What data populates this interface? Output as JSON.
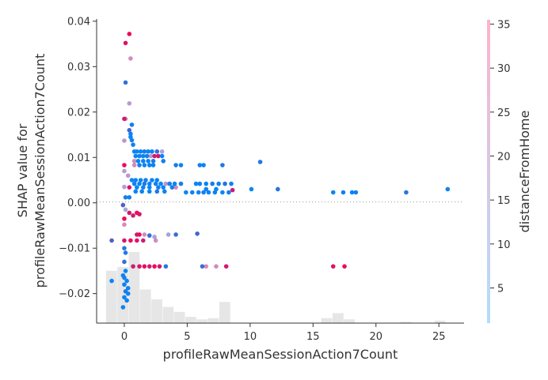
{
  "chart_data": {
    "type": "scatter",
    "title": "",
    "xlabel": "profileRawMeanSessionAction7Count",
    "ylabel_lines": [
      "SHAP value for",
      "profileRawMeanSessionAction7Count"
    ],
    "xlim": [
      -2.2,
      27.0
    ],
    "ylim": [
      -0.0265,
      0.0405
    ],
    "xticks": [
      0,
      5,
      10,
      15,
      20,
      25
    ],
    "xtick_labels": [
      "0",
      "5",
      "10",
      "15",
      "20",
      "25"
    ],
    "yticks": [
      -0.02,
      -0.01,
      0.0,
      0.01,
      0.02,
      0.03,
      0.04
    ],
    "ytick_labels": [
      "−0.02",
      "−0.01",
      "0.00",
      "0.01",
      "0.02",
      "0.03",
      "0.04"
    ],
    "zero_line": true,
    "grid": false,
    "colorbar": {
      "label": "distanceFromHome",
      "range": [
        1,
        35.5
      ],
      "ticks": [
        5,
        10,
        15,
        20,
        25,
        30,
        35
      ],
      "tick_labels": [
        "5",
        "10",
        "15",
        "20",
        "25",
        "30",
        "35"
      ],
      "colors": [
        "#008afb",
        "#ff0052"
      ]
    },
    "histogram": {
      "color": "#e6e6e6",
      "bin_width": 0.9,
      "bins": [
        {
          "x": -1.0,
          "h": 0.42
        },
        {
          "x": -0.1,
          "h": 0.45
        },
        {
          "x": 0.8,
          "h": 0.57
        },
        {
          "x": 1.7,
          "h": 0.27
        },
        {
          "x": 2.6,
          "h": 0.19
        },
        {
          "x": 3.5,
          "h": 0.13
        },
        {
          "x": 4.4,
          "h": 0.09
        },
        {
          "x": 5.3,
          "h": 0.05
        },
        {
          "x": 6.2,
          "h": 0.03
        },
        {
          "x": 7.1,
          "h": 0.04
        },
        {
          "x": 8.0,
          "h": 0.17
        },
        {
          "x": 16.1,
          "h": 0.04
        },
        {
          "x": 17.0,
          "h": 0.08
        },
        {
          "x": 17.9,
          "h": 0.03
        },
        {
          "x": 22.4,
          "h": 0.01
        },
        {
          "x": 25.1,
          "h": 0.02
        }
      ]
    },
    "points": [
      [
        0.4,
        0.0372,
        33
      ],
      [
        0.1,
        0.0352,
        32
      ],
      [
        0.5,
        0.0318,
        24
      ],
      [
        0.1,
        0.0265,
        7
      ],
      [
        0.4,
        0.0219,
        17
      ],
      [
        0.0,
        0.0185,
        30
      ],
      [
        0.1,
        0.0185,
        26
      ],
      [
        0.6,
        0.0172,
        4
      ],
      [
        0.4,
        0.016,
        10
      ],
      [
        0.5,
        0.0152,
        2
      ],
      [
        0.5,
        0.0145,
        3
      ],
      [
        0.6,
        0.0138,
        2
      ],
      [
        0.0,
        0.0137,
        20
      ],
      [
        0.7,
        0.0128,
        4
      ],
      [
        0.8,
        0.0113,
        2
      ],
      [
        1.0,
        0.0113,
        3
      ],
      [
        1.3,
        0.0113,
        2
      ],
      [
        1.6,
        0.0113,
        5
      ],
      [
        1.9,
        0.0113,
        2
      ],
      [
        2.2,
        0.0113,
        3
      ],
      [
        2.6,
        0.0113,
        8
      ],
      [
        3.0,
        0.0113,
        14
      ],
      [
        0.9,
        0.0103,
        3
      ],
      [
        1.2,
        0.0103,
        4
      ],
      [
        1.5,
        0.0103,
        2
      ],
      [
        1.8,
        0.0103,
        3
      ],
      [
        2.1,
        0.0103,
        18
      ],
      [
        2.4,
        0.0103,
        28
      ],
      [
        2.7,
        0.0103,
        30
      ],
      [
        3.0,
        0.0103,
        2
      ],
      [
        0.8,
        0.0092,
        22
      ],
      [
        1.1,
        0.0092,
        2
      ],
      [
        1.5,
        0.0092,
        3
      ],
      [
        1.9,
        0.0092,
        2
      ],
      [
        2.3,
        0.0092,
        5
      ],
      [
        3.1,
        0.0092,
        3
      ],
      [
        0.8,
        0.0083,
        24
      ],
      [
        1.2,
        0.0083,
        3
      ],
      [
        1.6,
        0.0083,
        2
      ],
      [
        2.0,
        0.0083,
        3
      ],
      [
        2.3,
        0.0083,
        2
      ],
      [
        4.1,
        0.0083,
        5
      ],
      [
        4.5,
        0.0083,
        2
      ],
      [
        6.0,
        0.0083,
        3
      ],
      [
        6.3,
        0.0083,
        2
      ],
      [
        7.8,
        0.0083,
        6
      ],
      [
        10.8,
        0.009,
        6
      ],
      [
        0.0,
        0.0083,
        33
      ],
      [
        0.0,
        0.007,
        16
      ],
      [
        0.3,
        0.006,
        20
      ],
      [
        0.6,
        0.005,
        2
      ],
      [
        0.9,
        0.005,
        3
      ],
      [
        1.3,
        0.005,
        2
      ],
      [
        1.7,
        0.005,
        4
      ],
      [
        2.2,
        0.005,
        3
      ],
      [
        2.6,
        0.005,
        2
      ],
      [
        0.8,
        0.0042,
        3
      ],
      [
        1.2,
        0.0042,
        2
      ],
      [
        1.6,
        0.0042,
        5
      ],
      [
        2.0,
        0.0042,
        2
      ],
      [
        2.5,
        0.0042,
        3
      ],
      [
        2.9,
        0.0042,
        2
      ],
      [
        3.3,
        0.0042,
        20
      ],
      [
        3.6,
        0.0042,
        3
      ],
      [
        4.0,
        0.0042,
        2
      ],
      [
        4.5,
        0.0042,
        4
      ],
      [
        5.7,
        0.0042,
        2
      ],
      [
        6.0,
        0.0042,
        3
      ],
      [
        6.5,
        0.0042,
        2
      ],
      [
        7.0,
        0.0042,
        5
      ],
      [
        7.5,
        0.0042,
        3
      ],
      [
        8.0,
        0.0042,
        7
      ],
      [
        8.5,
        0.0042,
        3
      ],
      [
        0.0,
        0.0035,
        15
      ],
      [
        0.4,
        0.0034,
        30
      ],
      [
        1.0,
        0.0034,
        2
      ],
      [
        1.5,
        0.0034,
        3
      ],
      [
        2.0,
        0.0034,
        2
      ],
      [
        2.7,
        0.0034,
        4
      ],
      [
        3.1,
        0.0034,
        2
      ],
      [
        3.8,
        0.0034,
        3
      ],
      [
        4.1,
        0.0034,
        24
      ],
      [
        6.5,
        0.003,
        3
      ],
      [
        7.3,
        0.003,
        2
      ],
      [
        8.6,
        0.0028,
        28
      ],
      [
        10.1,
        0.003,
        2
      ],
      [
        12.2,
        0.003,
        6
      ],
      [
        25.7,
        0.003,
        3
      ],
      [
        0.9,
        0.0025,
        2
      ],
      [
        1.4,
        0.0025,
        3
      ],
      [
        2.0,
        0.0025,
        2
      ],
      [
        2.6,
        0.0025,
        5
      ],
      [
        3.2,
        0.0025,
        2
      ],
      [
        4.9,
        0.0023,
        2
      ],
      [
        5.4,
        0.0023,
        3
      ],
      [
        5.9,
        0.0023,
        2
      ],
      [
        6.3,
        0.0023,
        4
      ],
      [
        6.7,
        0.0023,
        2
      ],
      [
        7.2,
        0.0023,
        3
      ],
      [
        7.8,
        0.0023,
        2
      ],
      [
        8.3,
        0.0023,
        3
      ],
      [
        16.6,
        0.0023,
        2
      ],
      [
        17.4,
        0.0023,
        3
      ],
      [
        18.1,
        0.0023,
        2
      ],
      [
        18.4,
        0.0023,
        3
      ],
      [
        22.4,
        0.0023,
        6
      ],
      [
        0.1,
        0.0012,
        4
      ],
      [
        0.4,
        0.0012,
        3
      ],
      [
        -0.1,
        -0.0005,
        12
      ],
      [
        0.1,
        -0.0015,
        13
      ],
      [
        0.4,
        -0.0022,
        30
      ],
      [
        0.7,
        -0.0028,
        28
      ],
      [
        1.0,
        -0.0022,
        35
      ],
      [
        1.2,
        -0.0025,
        30
      ],
      [
        0.0,
        -0.0035,
        33
      ],
      [
        0.0,
        -0.0048,
        26
      ],
      [
        1.0,
        -0.007,
        28
      ],
      [
        1.2,
        -0.007,
        33
      ],
      [
        1.6,
        -0.007,
        24
      ],
      [
        2.0,
        -0.0072,
        8
      ],
      [
        2.4,
        -0.0075,
        15
      ],
      [
        3.5,
        -0.007,
        14
      ],
      [
        4.1,
        -0.007,
        8
      ],
      [
        5.8,
        -0.0068,
        10
      ],
      [
        -1.0,
        -0.0083,
        12
      ],
      [
        0.0,
        -0.0083,
        30
      ],
      [
        0.5,
        -0.0083,
        33
      ],
      [
        1.0,
        -0.0083,
        31
      ],
      [
        1.5,
        -0.0083,
        28
      ],
      [
        2.5,
        -0.0083,
        22
      ],
      [
        0.0,
        -0.01,
        6
      ],
      [
        0.1,
        -0.011,
        5
      ],
      [
        0.0,
        -0.013,
        8
      ],
      [
        0.7,
        -0.014,
        28
      ],
      [
        1.2,
        -0.014,
        31
      ],
      [
        1.6,
        -0.014,
        33
      ],
      [
        2.0,
        -0.014,
        28
      ],
      [
        2.4,
        -0.014,
        33
      ],
      [
        2.8,
        -0.014,
        30
      ],
      [
        3.3,
        -0.014,
        5
      ],
      [
        6.2,
        -0.014,
        8
      ],
      [
        6.5,
        -0.014,
        26
      ],
      [
        7.3,
        -0.014,
        24
      ],
      [
        8.1,
        -0.014,
        30
      ],
      [
        16.6,
        -0.014,
        31
      ],
      [
        17.5,
        -0.014,
        33
      ],
      [
        0.1,
        -0.015,
        2
      ],
      [
        -0.1,
        -0.016,
        3
      ],
      [
        -1.0,
        -0.0172,
        2
      ],
      [
        0.0,
        -0.0165,
        4
      ],
      [
        0.2,
        -0.0172,
        2
      ],
      [
        0.0,
        -0.018,
        3
      ],
      [
        0.3,
        -0.0188,
        2
      ],
      [
        0.1,
        -0.0195,
        5
      ],
      [
        0.3,
        -0.02,
        3
      ],
      [
        0.0,
        -0.0208,
        2
      ],
      [
        0.2,
        -0.0215,
        3
      ],
      [
        -0.1,
        -0.023,
        2
      ]
    ]
  }
}
